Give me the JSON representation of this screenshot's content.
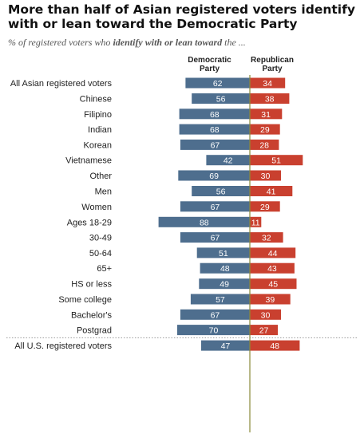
{
  "title": "More than half of Asian registered voters identify with or lean toward the Democratic Party",
  "subtitle_pre": "% of registered voters who ",
  "subtitle_bold": "identify with or lean toward",
  "subtitle_post": " the ...",
  "colors": {
    "democratic": "#4e6e8e",
    "republican": "#c9402f",
    "axis": "#8a8a3a",
    "divider": "#999999"
  },
  "chart_data": {
    "type": "bar",
    "orientation": "diverging-horizontal",
    "series_headers": [
      "Democratic Party",
      "Republican Party"
    ],
    "categories": [
      "All Asian registered voters",
      "Chinese",
      "Filipino",
      "Indian",
      "Korean",
      "Vietnamese",
      "Other",
      "Men",
      "Women",
      "Ages 18-29",
      "30-49",
      "50-64",
      "65+",
      "HS or less",
      "Some college",
      "Bachelor's",
      "Postgrad",
      "All U.S. registered voters"
    ],
    "groups": [
      [
        0
      ],
      [
        1,
        2,
        3,
        4,
        5,
        6
      ],
      [
        7,
        8
      ],
      [
        9,
        10,
        11,
        12
      ],
      [
        13,
        14,
        15,
        16
      ],
      [
        17
      ]
    ],
    "series": [
      {
        "name": "Democratic Party",
        "values": [
          62,
          56,
          68,
          68,
          67,
          42,
          69,
          56,
          67,
          88,
          67,
          51,
          48,
          49,
          57,
          67,
          70,
          47
        ]
      },
      {
        "name": "Republican Party",
        "values": [
          34,
          38,
          31,
          29,
          28,
          51,
          30,
          41,
          29,
          11,
          32,
          44,
          43,
          45,
          39,
          30,
          27,
          48
        ]
      }
    ]
  }
}
